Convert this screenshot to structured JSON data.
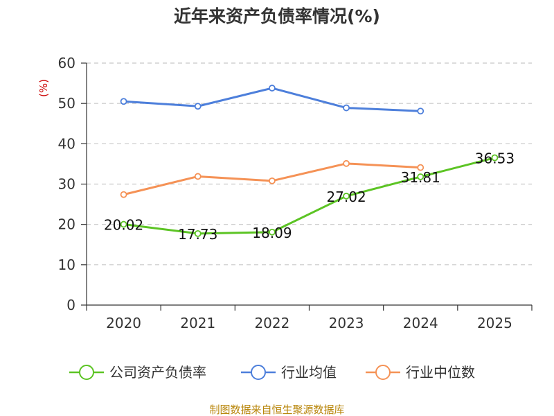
{
  "chart_data": {
    "type": "line",
    "title": "近年来资产负债率情况(%)",
    "ylabel": "(%)",
    "ylim": [
      0,
      60
    ],
    "yticks": [
      0,
      10,
      20,
      30,
      40,
      50,
      60
    ],
    "categories": [
      "2020",
      "2021",
      "2022",
      "2023",
      "2024",
      "2025"
    ],
    "grid": true,
    "legend_position": "bottom",
    "series": [
      {
        "name": "公司资产负债率",
        "color": "#5cc424",
        "values": [
          20.02,
          17.73,
          18.09,
          27.02,
          31.81,
          36.53
        ],
        "labels": [
          "20.02",
          "17.73",
          "18.09",
          "27.02",
          "31.81",
          "36.53"
        ]
      },
      {
        "name": "行业均值",
        "color": "#4d7fdb",
        "values": [
          50.5,
          49.3,
          53.8,
          48.9,
          48.1,
          null
        ]
      },
      {
        "name": "行业中位数",
        "color": "#f59256",
        "values": [
          27.4,
          31.9,
          30.8,
          35.1,
          34.1,
          null
        ]
      }
    ],
    "source": "制图数据来自恒生聚源数据库"
  }
}
